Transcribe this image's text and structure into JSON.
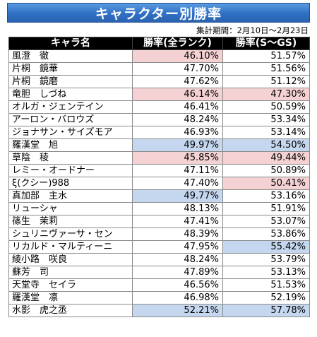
{
  "title": "キャラクター別勝率",
  "period": "集計期間：2月10日～2月23日",
  "headers": {
    "name": "キャラ名",
    "win_all": "勝率(全ランク)",
    "win_sgs": "勝率(S～GS)"
  },
  "colors": {
    "title_bar": "#2f6fc4",
    "header_bg": "#000000",
    "highlight_red": "#f4d2d4",
    "highlight_blue": "#c5d7ef"
  },
  "rows": [
    {
      "name": "風澄　徹",
      "win_all": "46.10%",
      "win_sgs": "51.57%",
      "hl_all": "red",
      "hl_sgs": ""
    },
    {
      "name": "片桐　鏡華",
      "win_all": "47.70%",
      "win_sgs": "51.56%",
      "hl_all": "",
      "hl_sgs": ""
    },
    {
      "name": "片桐　鏡磨",
      "win_all": "47.62%",
      "win_sgs": "51.12%",
      "hl_all": "",
      "hl_sgs": ""
    },
    {
      "name": "竜胆　しづね",
      "win_all": "46.14%",
      "win_sgs": "47.30%",
      "hl_all": "red",
      "hl_sgs": "red"
    },
    {
      "name": "オルガ・ジェンテイン",
      "win_all": "46.41%",
      "win_sgs": "50.59%",
      "hl_all": "",
      "hl_sgs": ""
    },
    {
      "name": "アーロン・バロウズ",
      "win_all": "48.24%",
      "win_sgs": "53.34%",
      "hl_all": "",
      "hl_sgs": ""
    },
    {
      "name": "ジョナサン・サイズモア",
      "win_all": "46.93%",
      "win_sgs": "53.14%",
      "hl_all": "",
      "hl_sgs": ""
    },
    {
      "name": "羅漢堂　旭",
      "win_all": "49.97%",
      "win_sgs": "54.50%",
      "hl_all": "blue",
      "hl_sgs": "blue"
    },
    {
      "name": "草陰　稜",
      "win_all": "45.85%",
      "win_sgs": "49.44%",
      "hl_all": "red",
      "hl_sgs": "red"
    },
    {
      "name": "レミー・オードナー",
      "win_all": "47.11%",
      "win_sgs": "50.89%",
      "hl_all": "",
      "hl_sgs": ""
    },
    {
      "name": "ξ(クシー)988",
      "win_all": "47.40%",
      "win_sgs": "50.41%",
      "hl_all": "",
      "hl_sgs": "red"
    },
    {
      "name": "真加部　主水",
      "win_all": "49.77%",
      "win_sgs": "53.16%",
      "hl_all": "blue",
      "hl_sgs": ""
    },
    {
      "name": "リューシャ",
      "win_all": "48.13%",
      "win_sgs": "51.91%",
      "hl_all": "",
      "hl_sgs": ""
    },
    {
      "name": "篠生　茉莉",
      "win_all": "47.41%",
      "win_sgs": "53.07%",
      "hl_all": "",
      "hl_sgs": ""
    },
    {
      "name": "シュリニヴァーサ・セン",
      "win_all": "48.39%",
      "win_sgs": "53.86%",
      "hl_all": "",
      "hl_sgs": ""
    },
    {
      "name": "リカルド・マルティーニ",
      "win_all": "47.95%",
      "win_sgs": "55.42%",
      "hl_all": "",
      "hl_sgs": "blue"
    },
    {
      "name": "綾小路　咲良",
      "win_all": "48.24%",
      "win_sgs": "53.79%",
      "hl_all": "",
      "hl_sgs": ""
    },
    {
      "name": "蘇芳　司",
      "win_all": "47.89%",
      "win_sgs": "53.13%",
      "hl_all": "",
      "hl_sgs": ""
    },
    {
      "name": "天堂寺　セイラ",
      "win_all": "46.56%",
      "win_sgs": "51.53%",
      "hl_all": "",
      "hl_sgs": ""
    },
    {
      "name": "羅漢堂　凛",
      "win_all": "46.98%",
      "win_sgs": "52.19%",
      "hl_all": "",
      "hl_sgs": ""
    },
    {
      "name": "水影　虎之丞",
      "win_all": "52.21%",
      "win_sgs": "57.78%",
      "hl_all": "blue",
      "hl_sgs": "blue"
    }
  ]
}
